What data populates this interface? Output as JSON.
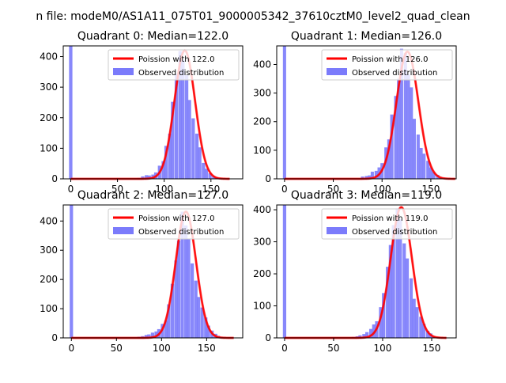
{
  "suptitle": "n file: modeM0/AS1A11_075T01_9000005342_37610cztM0_level2_quad_clean",
  "colors": {
    "bar": "#7b7bfb",
    "fit": "#ff0000",
    "axis": "#000000"
  },
  "chart_data": [
    {
      "type": "bar",
      "title": "Quadrant 0: Median=122.0",
      "xlim": [
        -8,
        184
      ],
      "ylim": [
        0,
        435
      ],
      "xticks": [
        0,
        50,
        100,
        150
      ],
      "yticks": [
        0,
        100,
        200,
        300,
        400
      ],
      "legend": {
        "placement": "top-right",
        "entries": [
          "Poission with 122.0",
          "Observed distribution"
        ]
      },
      "median": 122.0,
      "bar_width": 3.6,
      "bars": {
        "x": [
          0,
          70,
          73,
          77,
          81,
          84,
          88,
          91,
          95,
          99,
          102,
          106,
          109,
          113,
          117,
          120,
          124,
          127,
          131,
          135,
          138,
          142,
          145,
          149,
          153,
          156,
          160,
          163,
          167
        ],
        "values": [
          435,
          2,
          3,
          8,
          12,
          11,
          14,
          21,
          43,
          58,
          108,
          148,
          252,
          343,
          418,
          388,
          339,
          258,
          198,
          148,
          103,
          52,
          33,
          18,
          9,
          5,
          2,
          1,
          1
        ]
      },
      "fit": {
        "name": "Poission with 122.0",
        "x_range": [
          0,
          170
        ],
        "peak": 420
      }
    },
    {
      "type": "bar",
      "title": "Quadrant 1: Median=126.0",
      "xlim": [
        -8,
        176
      ],
      "ylim": [
        0,
        465
      ],
      "xticks": [
        0,
        50,
        100,
        150
      ],
      "yticks": [
        0,
        100,
        200,
        300,
        400
      ],
      "legend": {
        "placement": "top-right",
        "entries": [
          "Poission with 126.0",
          "Observed distribution"
        ]
      },
      "median": 126.0,
      "bar_width": 3.3,
      "bars": {
        "x": [
          0,
          80,
          84,
          87,
          90,
          94,
          97,
          100,
          104,
          107,
          110,
          114,
          117,
          120,
          124,
          127,
          130,
          133,
          137,
          140,
          143,
          147,
          150,
          153,
          157,
          160,
          163
        ],
        "values": [
          465,
          8,
          10,
          12,
          25,
          28,
          40,
          55,
          110,
          138,
          225,
          290,
          350,
          455,
          440,
          365,
          320,
          210,
          155,
          108,
          88,
          63,
          40,
          24,
          14,
          6,
          2
        ]
      },
      "fit": {
        "name": "Poission with 126.0",
        "x_range": [
          0,
          175
        ],
        "peak": 445
      }
    },
    {
      "type": "bar",
      "title": "Quadrant 2: Median=127.0",
      "xlim": [
        -9,
        190
      ],
      "ylim": [
        0,
        455
      ],
      "xticks": [
        0,
        50,
        100,
        150
      ],
      "yticks": [
        0,
        100,
        200,
        300,
        400
      ],
      "legend": {
        "placement": "top-right",
        "entries": [
          "Poission with 127.0",
          "Observed distribution"
        ]
      },
      "median": 127.0,
      "bar_width": 3.7,
      "bars": {
        "x": [
          0,
          75,
          79,
          83,
          86,
          90,
          94,
          97,
          101,
          105,
          108,
          112,
          116,
          119,
          123,
          127,
          130,
          134,
          138,
          141,
          145,
          149,
          152,
          156,
          160,
          163,
          167,
          171,
          174
        ],
        "values": [
          455,
          4,
          6,
          10,
          12,
          18,
          22,
          30,
          48,
          60,
          115,
          185,
          265,
          333,
          432,
          385,
          340,
          255,
          196,
          140,
          104,
          70,
          42,
          25,
          14,
          7,
          3,
          1,
          1
        ]
      },
      "fit": {
        "name": "Poission with 127.0",
        "x_range": [
          0,
          180
        ],
        "peak": 432
      }
    },
    {
      "type": "bar",
      "title": "Quadrant 3: Median=119.0",
      "xlim": [
        -8,
        175
      ],
      "ylim": [
        0,
        415
      ],
      "xticks": [
        0,
        50,
        100,
        150
      ],
      "yticks": [
        0,
        100,
        200,
        300,
        400
      ],
      "legend": {
        "placement": "top-right",
        "entries": [
          "Poission with 119.0",
          "Observed distribution"
        ]
      },
      "median": 119.0,
      "bar_width": 3.4,
      "bars": {
        "x": [
          0,
          70,
          74,
          77,
          81,
          84,
          88,
          91,
          94,
          98,
          101,
          105,
          108,
          111,
          115,
          118,
          122,
          125,
          129,
          132,
          135,
          139,
          142,
          146,
          149,
          152,
          156,
          159
        ],
        "values": [
          415,
          3,
          5,
          8,
          12,
          18,
          28,
          42,
          52,
          96,
          140,
          222,
          290,
          352,
          404,
          370,
          295,
          248,
          186,
          122,
          96,
          66,
          44,
          22,
          14,
          6,
          3,
          1
        ]
      },
      "fit": {
        "name": "Poission with 119.0",
        "x_range": [
          0,
          165
        ],
        "peak": 408
      }
    }
  ]
}
